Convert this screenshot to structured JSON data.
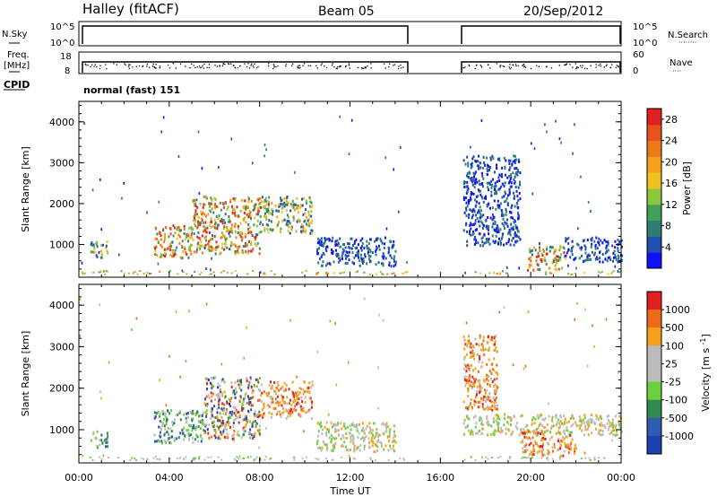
{
  "header": {
    "station": "Halley (fitACF)",
    "beam": "Beam 05",
    "date": "20/Sep/2012"
  },
  "strip_labels": {
    "nsky": "N.Sky",
    "nsearch": "N.Search",
    "nsearch_dots": "········",
    "freq": "Freq.",
    "freq_unit": "[MHz]",
    "nave": "Nave",
    "nave_dots": "····",
    "cpid": "CPID",
    "cpid_value": "normal (fast) 151"
  },
  "strip_ticks": {
    "nsky_top": "10^5",
    "nsky_bottom": "10^0",
    "nsearch_top": "10^5",
    "nsearch_bottom": "10^0",
    "freq_top": "18",
    "freq_bottom": "8",
    "nave_top": "60",
    "nave_bottom": "0"
  },
  "colors": {
    "power_scale": [
      "#1010ff",
      "#1e4fb0",
      "#2e7d73",
      "#3fa05a",
      "#8cc63f",
      "#f0c020",
      "#f5a21a",
      "#ee7a1a",
      "#e8501c",
      "#e21f1f"
    ],
    "velocity_scale": [
      "#e21f1f",
      "#ee6a1a",
      "#f5a21a",
      "#bbbbbb",
      "#bbbbbb",
      "#6bd03c",
      "#2e8a50",
      "#2f5bb0",
      "#1e3fb0"
    ]
  },
  "chart_data": [
    {
      "type": "heatmap",
      "title": "Power",
      "ylabel": "Slant Range [km]",
      "xlabel": "",
      "x_ticks": [
        "00:00",
        "04:00",
        "08:00",
        "12:00",
        "16:00",
        "20:00",
        "00:00"
      ],
      "y_ticks": [
        "1000",
        "2000",
        "3000",
        "4000"
      ],
      "ylim": [
        200,
        4500
      ],
      "xlim_hours": [
        0,
        24
      ],
      "colorbar": {
        "label": "Power [dB]",
        "ticks": [
          "4",
          "8",
          "12",
          "16",
          "20",
          "24",
          "28"
        ],
        "range": [
          0,
          30
        ]
      },
      "data_gap_hours": [
        14.5,
        17.0
      ],
      "echo_regions": [
        {
          "t_start": 0.5,
          "t_end": 1.3,
          "r_min": 700,
          "r_max": 1100,
          "level": "moderate"
        },
        {
          "t_start": 3.3,
          "t_end": 5.0,
          "r_min": 700,
          "r_max": 1500,
          "level": "high"
        },
        {
          "t_start": 5.0,
          "t_end": 8.0,
          "r_min": 800,
          "r_max": 2200,
          "level": "high"
        },
        {
          "t_start": 8.0,
          "t_end": 10.3,
          "r_min": 1300,
          "r_max": 2200,
          "level": "moderate"
        },
        {
          "t_start": 10.5,
          "t_end": 14.0,
          "r_min": 500,
          "r_max": 1200,
          "level": "low"
        },
        {
          "t_start": 17.0,
          "t_end": 19.5,
          "r_min": 1000,
          "r_max": 3200,
          "level": "low"
        },
        {
          "t_start": 19.8,
          "t_end": 21.5,
          "r_min": 400,
          "r_max": 1000,
          "level": "high"
        },
        {
          "t_start": 21.5,
          "t_end": 24.0,
          "r_min": 600,
          "r_max": 1200,
          "level": "low"
        }
      ]
    },
    {
      "type": "heatmap",
      "title": "Velocity",
      "ylabel": "Slant Range [km]",
      "xlabel": "Time UT",
      "x_ticks": [
        "00:00",
        "04:00",
        "08:00",
        "12:00",
        "16:00",
        "20:00",
        "00:00"
      ],
      "y_ticks": [
        "1000",
        "2000",
        "3000",
        "4000"
      ],
      "ylim": [
        200,
        4500
      ],
      "xlim_hours": [
        0,
        24
      ],
      "colorbar": {
        "label": "Velocity [m s",
        "label_sup": "-1",
        "label_end": "]",
        "ticks": [
          "1000",
          "500",
          "100",
          "25",
          "-25",
          "-100",
          "-500",
          "-1000"
        ]
      },
      "data_gap_hours": [
        14.5,
        17.0
      ],
      "echo_regions": [
        {
          "t_start": 0.5,
          "t_end": 1.3,
          "r_min": 600,
          "r_max": 1000,
          "sign": "toward"
        },
        {
          "t_start": 3.3,
          "t_end": 5.5,
          "r_min": 700,
          "r_max": 1500,
          "sign": "toward"
        },
        {
          "t_start": 5.5,
          "t_end": 8.0,
          "r_min": 800,
          "r_max": 2300,
          "sign": "mixed"
        },
        {
          "t_start": 8.0,
          "t_end": 10.3,
          "r_min": 1300,
          "r_max": 2200,
          "sign": "away"
        },
        {
          "t_start": 10.5,
          "t_end": 14.0,
          "r_min": 500,
          "r_max": 1200,
          "sign": "near_zero"
        },
        {
          "t_start": 17.0,
          "t_end": 18.5,
          "r_min": 1500,
          "r_max": 3300,
          "sign": "away"
        },
        {
          "t_start": 17.0,
          "t_end": 24.0,
          "r_min": 900,
          "r_max": 1400,
          "sign": "near_zero"
        },
        {
          "t_start": 19.5,
          "t_end": 22.0,
          "r_min": 400,
          "r_max": 1000,
          "sign": "away"
        }
      ]
    }
  ]
}
